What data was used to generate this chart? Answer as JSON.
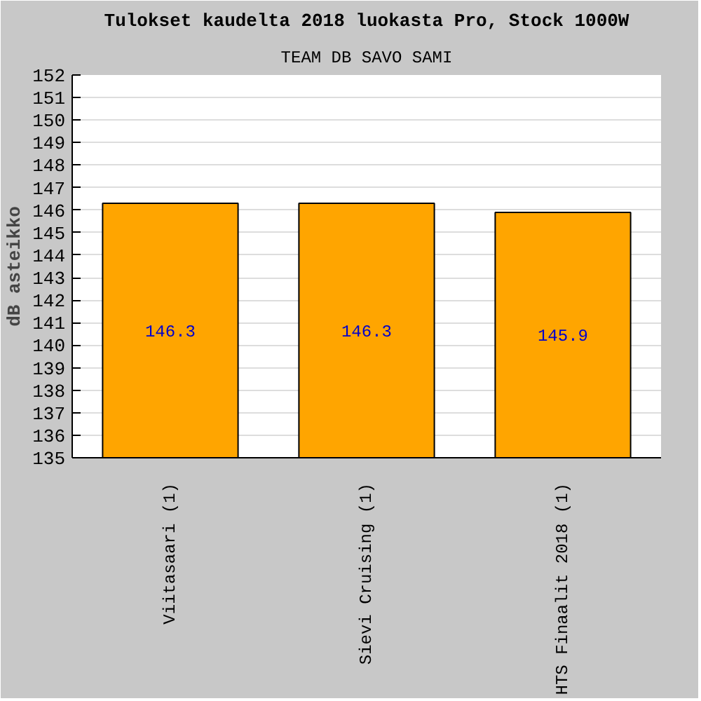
{
  "chart_data": {
    "type": "bar",
    "title": "Tulokset kaudelta 2018 luokasta Pro, Stock 1000W",
    "subtitle": "TEAM DB SAVO SAMI",
    "ylabel": "dB asteikko",
    "categories": [
      "Viitasaari (1)",
      "Sievi Cruising (1)",
      "HTS Finaalit 2018 (1)"
    ],
    "values": [
      146.3,
      146.3,
      145.9
    ],
    "color": "#ffa500",
    "data_labels": true,
    "ylim": [
      135,
      152
    ],
    "yticks": [
      135,
      136,
      137,
      138,
      139,
      140,
      141,
      142,
      143,
      144,
      145,
      146,
      147,
      148,
      149,
      150,
      151,
      152
    ],
    "grid": "y"
  }
}
